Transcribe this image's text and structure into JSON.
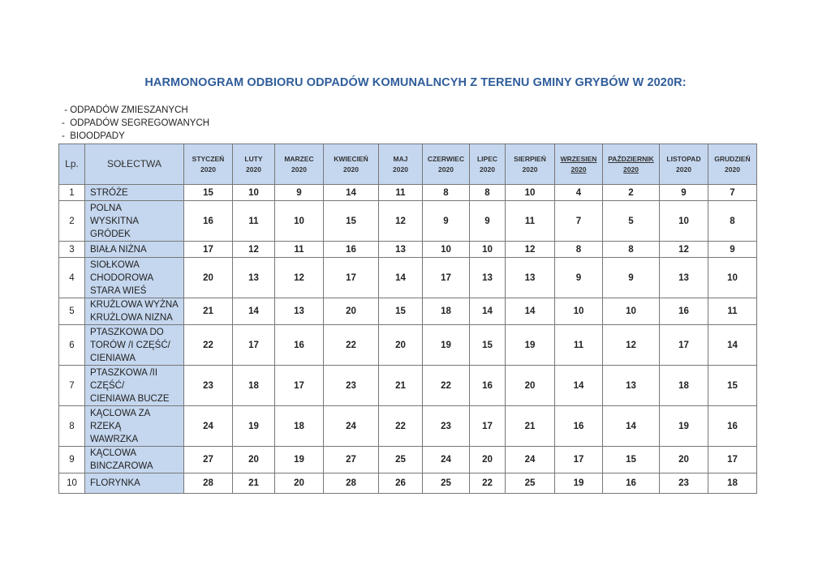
{
  "title": "HARMONOGRAM ODBIORU ODPADÓW KOMUNALNCYH Z TERENU GMINY GRYBÓW W 2020R:",
  "legend": [
    " - ODPADÓW ZMIESZANYCH",
    "-  ODPADÓW SEGREGOWANYCH",
    "-  BIOODPADY"
  ],
  "table": {
    "colors": {
      "header_bg": "#c5d7ef",
      "title": "#2f5d9a"
    },
    "lp_header": "Lp.",
    "name_header": "SOŁECTWA",
    "months": [
      {
        "name": "STYCZEŃ",
        "year": "2020",
        "underlined": false
      },
      {
        "name": "LUTY",
        "year": "2020",
        "underlined": false
      },
      {
        "name": "MARZEC",
        "year": "2020",
        "underlined": false
      },
      {
        "name": "KWIECIEŃ",
        "year": "2020",
        "underlined": false
      },
      {
        "name": "MAJ",
        "year": "2020",
        "underlined": false
      },
      {
        "name": "CZERWIEC",
        "year": "2020",
        "underlined": false
      },
      {
        "name": "LIPEC",
        "year": "2020",
        "underlined": false
      },
      {
        "name": "SIERPIEŃ",
        "year": "2020",
        "underlined": false
      },
      {
        "name": "WRZESIEN",
        "year": "2020",
        "underlined": true
      },
      {
        "name": "PAŹDZIERNIK",
        "year": "2020",
        "underlined": true
      },
      {
        "name": "LISTOPAD",
        "year": "2020",
        "underlined": false
      },
      {
        "name": "GRUDZIEŃ",
        "year": "2020",
        "underlined": false
      }
    ],
    "rows": [
      {
        "lp": "1",
        "lines": [
          "STRÓŻE"
        ],
        "days": [
          "15",
          "10",
          "9",
          "14",
          "11",
          "8",
          "8",
          "10",
          "4",
          "2",
          "9",
          "7"
        ]
      },
      {
        "lp": "2",
        "lines": [
          "POLNA",
          "WYSKITNA",
          "GRÓDEK"
        ],
        "days": [
          "16",
          "11",
          "10",
          "15",
          "12",
          "9",
          "9",
          "11",
          "7",
          "5",
          "10",
          "8"
        ]
      },
      {
        "lp": "3",
        "lines": [
          "BIAŁA NIŻNA"
        ],
        "days": [
          "17",
          "12",
          "11",
          "16",
          "13",
          "10",
          "10",
          "12",
          "8",
          "8",
          "12",
          "9"
        ]
      },
      {
        "lp": "4",
        "lines": [
          "SIOŁKOWA",
          "CHODOROWA",
          "STARA WIEŚ"
        ],
        "days": [
          "20",
          "13",
          "12",
          "17",
          "14",
          "17",
          "13",
          "13",
          "9",
          "9",
          "13",
          "10"
        ]
      },
      {
        "lp": "5",
        "lines": [
          "KRUŻLOWA WYŻNA",
          "KRUŻLOWA NIZNA"
        ],
        "days": [
          "21",
          "14",
          "13",
          "20",
          "15",
          "18",
          "14",
          "14",
          "10",
          "10",
          "16",
          "11"
        ]
      },
      {
        "lp": "6",
        "lines": [
          "PTASZKOWA DO",
          "TORÓW /I CZĘŚĆ/",
          "CIENIAWA"
        ],
        "days": [
          "22",
          "17",
          "16",
          "22",
          "20",
          "19",
          "15",
          "19",
          "11",
          "12",
          "17",
          "14"
        ]
      },
      {
        "lp": "7",
        "lines": [
          "PTASZKOWA /II",
          "CZĘŚĆ/",
          "CIENIAWA BUCZE"
        ],
        "days": [
          "23",
          "18",
          "17",
          "23",
          "21",
          "22",
          "16",
          "20",
          "14",
          "13",
          "18",
          "15"
        ]
      },
      {
        "lp": "8",
        "lines": [
          "KĄCLOWA ZA",
          "RZEKĄ",
          "WAWRZKA"
        ],
        "days": [
          "24",
          "19",
          "18",
          "24",
          "22",
          "23",
          "17",
          "21",
          "16",
          "14",
          "19",
          "16"
        ]
      },
      {
        "lp": "9",
        "lines": [
          "KĄCLOWA",
          "BINCZAROWA"
        ],
        "days": [
          "27",
          "20",
          "19",
          "27",
          "25",
          "24",
          "20",
          "24",
          "17",
          "15",
          "20",
          "17"
        ]
      },
      {
        "lp": "10",
        "lines": [
          "FLORYNKA"
        ],
        "days": [
          "28",
          "21",
          "20",
          "28",
          "26",
          "25",
          "22",
          "25",
          "19",
          "16",
          "23",
          "18"
        ]
      }
    ]
  }
}
